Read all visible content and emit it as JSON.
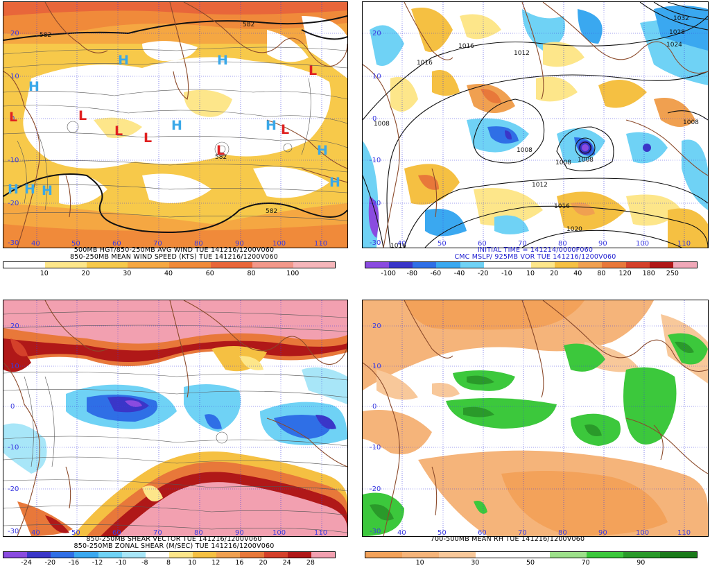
{
  "panels": [
    {
      "id": "tl",
      "caption_lines": [
        "500MB HGT/850-250MB AVG WIND TUE 141216/1200V060",
        "850-250MB MEAN WIND SPEED (KTS) TUE 141216/1200V060"
      ],
      "caption_color": "#000000",
      "colorbar": {
        "colors": [
          "#ffffff",
          "#fde68a",
          "#f7c94a",
          "#f5a742",
          "#f08a3a",
          "#e8663a",
          "#f2988a",
          "#f6b6ba"
        ],
        "labels": [
          "10",
          "20",
          "30",
          "40",
          "60",
          "80",
          "100"
        ]
      },
      "lat_labels": [
        "20",
        "10",
        "0",
        "-10",
        "-20",
        "-30"
      ],
      "lon_labels": [
        "40",
        "50",
        "60",
        "70",
        "80",
        "90",
        "100",
        "110"
      ],
      "contour_labels": [
        "582",
        "582",
        "582",
        "582"
      ],
      "highs": 10,
      "lows": 7,
      "high_letter": "H",
      "low_letter": "L"
    },
    {
      "id": "tr",
      "caption_lines": [
        "INITIAL TIME = 141214/0000F060",
        "CMC MSLP/ 925MB VOR TUE 141216/1200V060"
      ],
      "caption_color": "#1a1ad0",
      "colorbar": {
        "colors": [
          "#8a4be0",
          "#3a36c8",
          "#2f6fe6",
          "#3aa8f0",
          "#6fd2f5",
          "#ffffff",
          "#ffffff",
          "#fde68a",
          "#f5c042",
          "#f0a050",
          "#e8783a",
          "#d4402a",
          "#b01818",
          "#f0a8b8"
        ],
        "labels": [
          "-100",
          "-80",
          "-60",
          "-40",
          "-20",
          "-10",
          "10",
          "20",
          "40",
          "80",
          "120",
          "180",
          "250"
        ]
      },
      "lat_labels": [
        "20",
        "10",
        "0",
        "-10",
        "-20",
        "-30"
      ],
      "lon_labels": [
        "40",
        "50",
        "60",
        "70",
        "80",
        "90",
        "100",
        "110"
      ],
      "isobar_labels": [
        "1016",
        "1012",
        "1016",
        "1008",
        "1008",
        "1008",
        "1008",
        "1012",
        "1016",
        "1020",
        "1008",
        "1016",
        "1032",
        "1028",
        "1024"
      ]
    },
    {
      "id": "bl",
      "caption_lines": [
        "850-250MB SHEAR VECTOR TUE 141216/1200V060",
        "850-250MB ZONAL SHEAR (M/SEC) TUE 141216/1200V060"
      ],
      "caption_color": "#000000",
      "colorbar": {
        "colors": [
          "#8a4be0",
          "#3a36c8",
          "#2f6fe6",
          "#3aa8f0",
          "#6fd2f5",
          "#a8e6f8",
          "#ffffff",
          "#fde68a",
          "#f5c042",
          "#f0a050",
          "#e8783a",
          "#d4402a",
          "#b01818",
          "#f2a0b0"
        ],
        "labels": [
          "-24",
          "-20",
          "-16",
          "-12",
          "-10",
          "-8",
          "8",
          "10",
          "12",
          "16",
          "20",
          "24",
          "28"
        ]
      },
      "lat_labels": [
        "20",
        "10",
        "0",
        "-10",
        "-20",
        "-30"
      ],
      "lon_labels": [
        "40",
        "50",
        "60",
        "70",
        "80",
        "90",
        "100",
        "110"
      ]
    },
    {
      "id": "br",
      "caption_lines": [
        "700-500MB MEAN RH TUE 141216/1200V060"
      ],
      "caption_color": "#000000",
      "colorbar": {
        "colors": [
          "#f3a25a",
          "#f5b47a",
          "#f8c89a",
          "#ffffff",
          "#ffffff",
          "#9de08a",
          "#3cc83c",
          "#2a9a2a",
          "#1a7a1a"
        ],
        "labels": [
          "10",
          "30",
          "50",
          "70",
          "90"
        ]
      },
      "lat_labels": [
        "20",
        "10",
        "0",
        "-10",
        "-20",
        "-30"
      ],
      "lon_labels": [
        "40",
        "50",
        "60",
        "70",
        "80",
        "90",
        "100",
        "110"
      ]
    }
  ]
}
